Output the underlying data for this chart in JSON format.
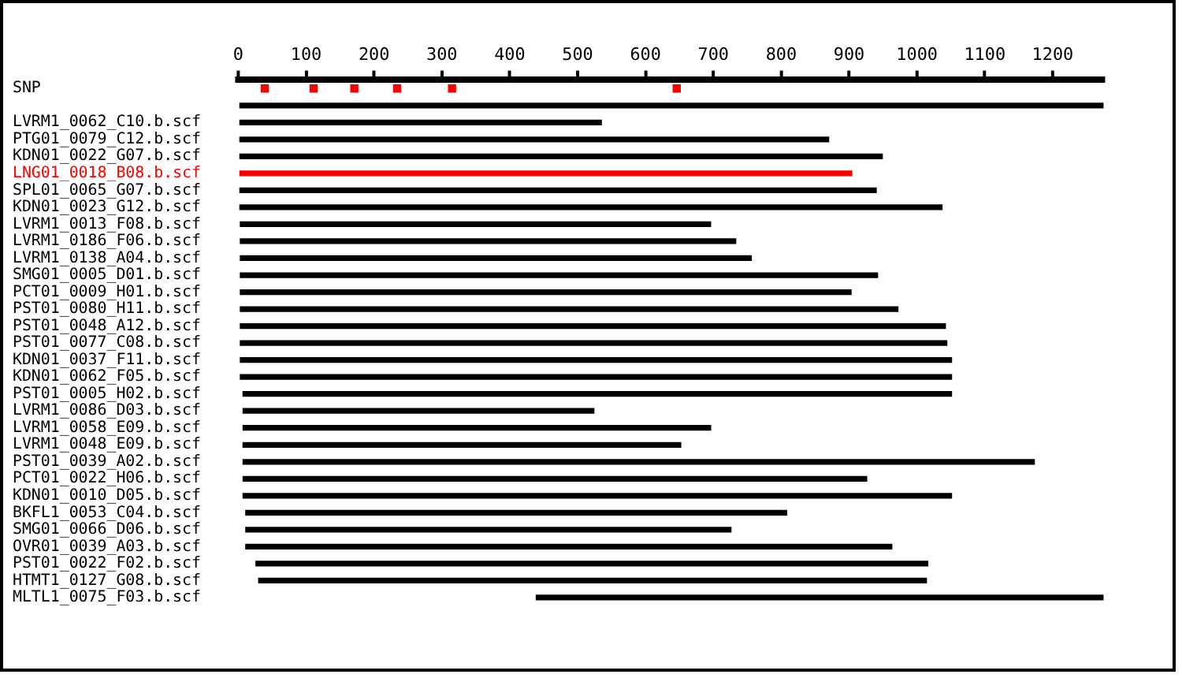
{
  "chart_data": {
    "type": "bar",
    "orientation": "horizontal",
    "categories": [
      "SNP",
      null,
      "LVRM1_0062_C10.b.scf",
      "PTG01_0079_C12.b.scf",
      "KDN01_0022_G07.b.scf",
      "LNG01_0018_B08.b.scf",
      "SPL01_0065_G07.b.scf",
      "KDN01_0023_G12.b.scf",
      "LVRM1_0013_F08.b.scf",
      "LVRM1_0186_F06.b.scf",
      "LVRM1_0138_A04.b.scf",
      "SMG01_0005_D01.b.scf",
      "PCT01_0009_H01.b.scf",
      "PST01_0080_H11.b.scf",
      "PST01_0048_A12.b.scf",
      "PST01_0077_C08.b.scf",
      "KDN01_0037_F11.b.scf",
      "KDN01_0062_F05.b.scf",
      "PST01_0005_H02.b.scf",
      "LVRM1_0086_D03.b.scf",
      "LVRM1_0058_E09.b.scf",
      "LVRM1_0048_E09.b.scf",
      "PST01_0039_A02.b.scf",
      "PCT01_0022_H06.b.scf",
      "KDN01_0010_D05.b.scf",
      "BKFL1_0053_C04.b.scf",
      "SMG01_0066_D06.b.scf",
      "OVR01_0039_A03.b.scf",
      "PST01_0022_F02.b.scf",
      "HTMT1_0127_G08.b.scf",
      "MLTL1_0075_F03.b.scf"
    ],
    "series": [
      {
        "type": "bar",
        "base": [
          null,
          0,
          0,
          0,
          0,
          0,
          0,
          0,
          3,
          3,
          3,
          3,
          3,
          3,
          3,
          3,
          3,
          3,
          7,
          7,
          7,
          7,
          7,
          7,
          7,
          11,
          11,
          11,
          26,
          30,
          439
        ],
        "values": [
          null,
          1275,
          535,
          870,
          949,
          904,
          940,
          1037,
          693,
          730,
          753,
          939,
          900,
          969,
          1039,
          1041,
          1048,
          1048,
          1044,
          517,
          689,
          645,
          1166,
          919,
          1044,
          797,
          715,
          952,
          990,
          984,
          836
        ],
        "colors": [
          "#000000",
          "#000000",
          "#000000",
          "#000000",
          "#000000",
          "#ff0000",
          "#000000",
          "#000000",
          "#000000",
          "#000000",
          "#000000",
          "#000000",
          "#000000",
          "#000000",
          "#000000",
          "#000000",
          "#000000",
          "#000000",
          "#000000",
          "#000000",
          "#000000",
          "#000000",
          "#000000",
          "#000000",
          "#000000",
          "#000000",
          "#000000",
          "#000000",
          "#000000",
          "#000000",
          "#000000"
        ]
      },
      {
        "type": "scatter",
        "x": [
          "SNP",
          "SNP",
          "SNP",
          "SNP",
          "SNP",
          "SNP"
        ],
        "values": [
          39,
          111,
          171,
          234,
          315,
          646
        ],
        "color": "#ff0000",
        "marker": "square"
      }
    ],
    "xlim": [
      0,
      1275
    ],
    "xticks": [
      0,
      100,
      200,
      300,
      400,
      500,
      600,
      700,
      800,
      900,
      1000,
      1100,
      1200
    ]
  }
}
